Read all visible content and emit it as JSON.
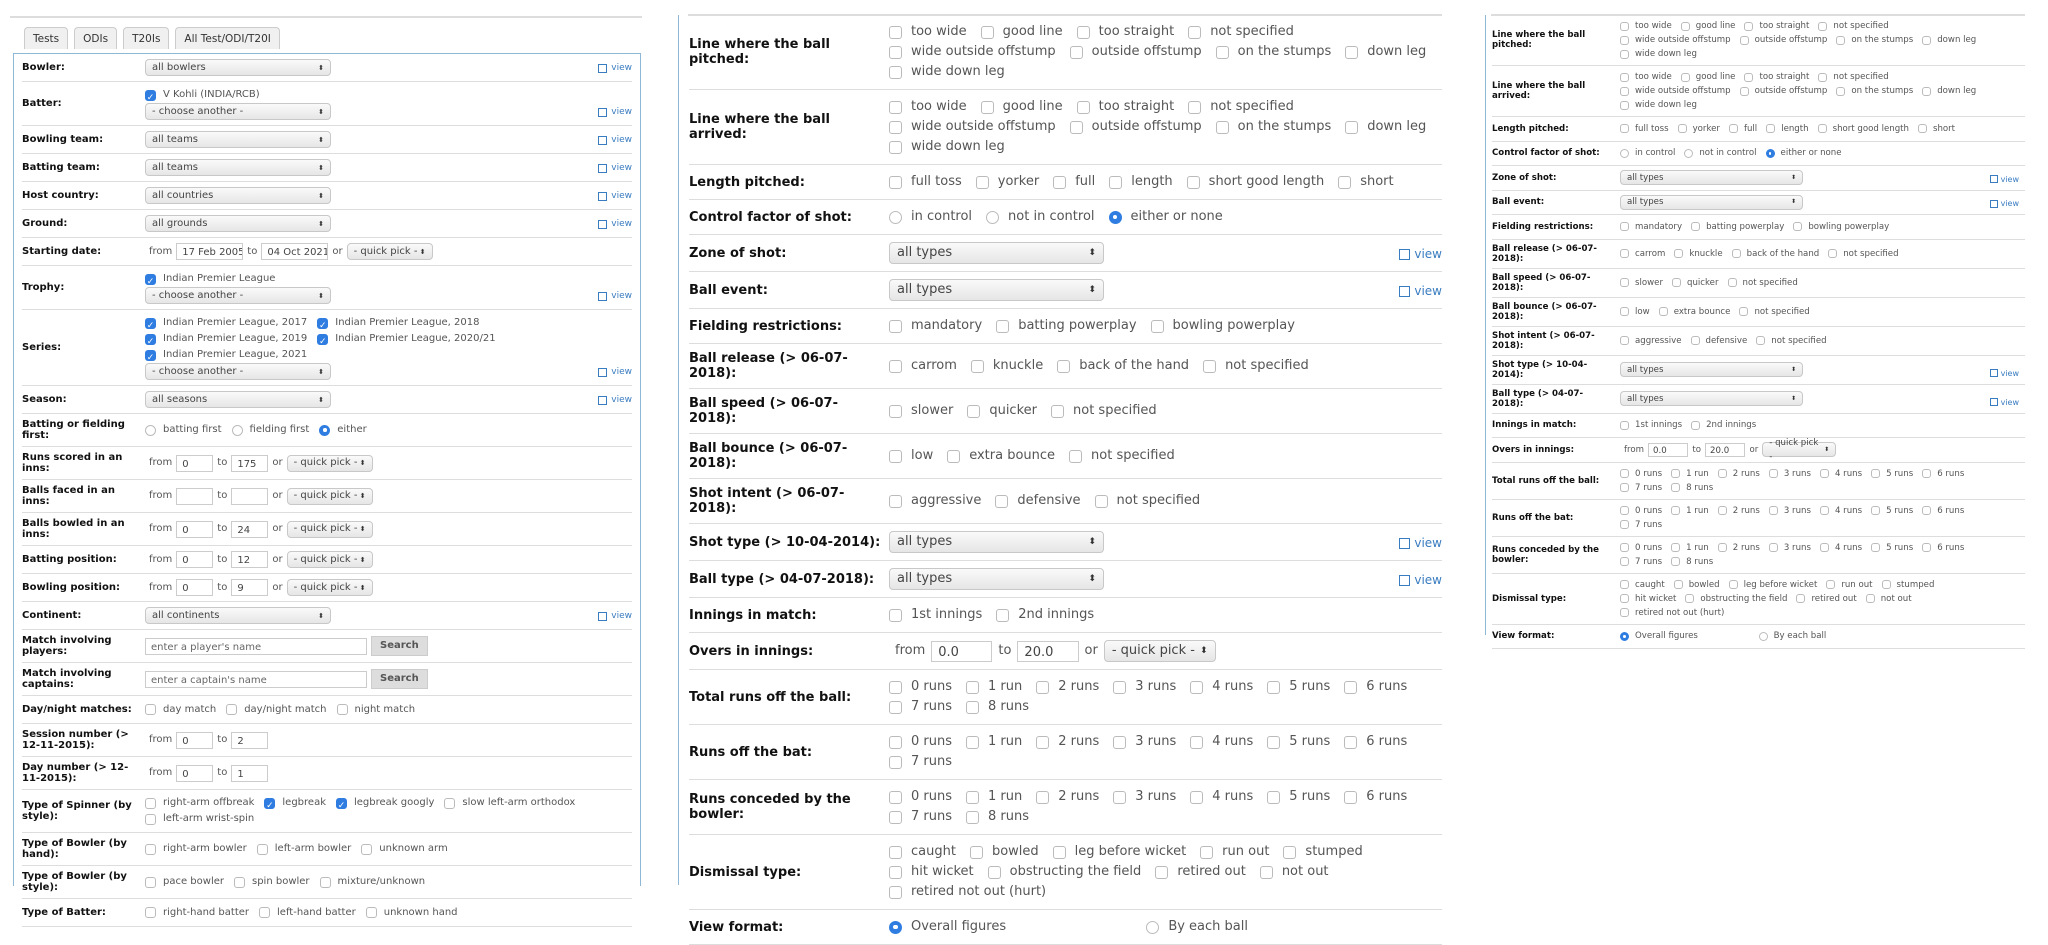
{
  "tabs": [
    "Tests",
    "ODIs",
    "T20Is",
    "All Test/ODI/T20I"
  ],
  "words": {
    "from": "from",
    "to": "to",
    "or": "or",
    "view": "view",
    "arrow": "⬍"
  },
  "colors": {
    "accent": "#2f7de1",
    "panel_border": "#8fb8d6",
    "link": "#3a7cc0"
  },
  "left_form": [
    {
      "label": "Bowler:",
      "select": "all bowlers",
      "view": true
    },
    {
      "label": "Batter:",
      "lines": [
        [
          {
            "label": "V Kohli (INDIA/RCB)",
            "checked": true
          }
        ]
      ],
      "select": "- choose another -",
      "view": true
    },
    {
      "label": "Bowling team:",
      "select": "all teams",
      "view": true
    },
    {
      "label": "Batting team:",
      "select": "all teams",
      "view": true
    },
    {
      "label": "Host country:",
      "select": "all countries",
      "view": true
    },
    {
      "label": "Ground:",
      "select": "all grounds",
      "view": true
    },
    {
      "label": "Starting date:",
      "range": {
        "from": "17 Feb 2005",
        "to": "04 Oct 2021",
        "quick": "- quick pick -"
      }
    },
    {
      "label": "Trophy:",
      "lines": [
        [
          {
            "label": "Indian Premier League",
            "checked": true
          }
        ]
      ],
      "select": "- choose another -",
      "view": true
    },
    {
      "label": "Series:",
      "lines": [
        [
          {
            "label": "Indian Premier League, 2017",
            "checked": true
          },
          {
            "label": "Indian Premier League, 2018",
            "checked": true
          }
        ],
        [
          {
            "label": "Indian Premier League, 2019",
            "checked": true
          },
          {
            "label": "Indian Premier League, 2020/21",
            "checked": true
          }
        ],
        [
          {
            "label": "Indian Premier League, 2021",
            "checked": true
          }
        ]
      ],
      "select": "- choose another -",
      "view": true
    },
    {
      "label": "Season:",
      "select": "all seasons",
      "view": true
    },
    {
      "label": "Batting or fielding first:",
      "radios": [
        {
          "label": "batting first",
          "selected": false
        },
        {
          "label": "fielding first",
          "selected": false
        },
        {
          "label": "either",
          "selected": true
        }
      ]
    },
    {
      "label": "Runs scored in an inns:",
      "range": {
        "from": "0",
        "to": "175",
        "quick": "- quick pick -"
      }
    },
    {
      "label": "Balls faced in an inns:",
      "range": {
        "from": "",
        "to": "",
        "quick": "- quick pick -"
      }
    },
    {
      "label": "Balls bowled in an inns:",
      "range": {
        "from": "0",
        "to": "24",
        "quick": "- quick pick -"
      }
    },
    {
      "label": "Batting position:",
      "range": {
        "from": "0",
        "to": "12",
        "quick": "- quick pick -"
      }
    },
    {
      "label": "Bowling position:",
      "range": {
        "from": "0",
        "to": "9",
        "quick": "- quick pick -"
      }
    },
    {
      "label": "Continent:",
      "select": "all continents",
      "view": true
    },
    {
      "label": "Match involving players:",
      "search": {
        "placeholder": "enter a player's name",
        "button": "Search"
      }
    },
    {
      "label": "Match involving captains:",
      "search": {
        "placeholder": "enter a captain's name",
        "button": "Search"
      }
    },
    {
      "label": "Day/night matches:",
      "lines": [
        [
          {
            "label": "day match",
            "checked": false
          },
          {
            "label": "day/night match",
            "checked": false
          },
          {
            "label": "night match",
            "checked": false
          }
        ]
      ]
    },
    {
      "label": "Session number (> 12-11-2015):",
      "range": {
        "from": "0",
        "to": "2"
      }
    },
    {
      "label": "Day number (> 12-11-2015):",
      "range": {
        "from": "0",
        "to": "1"
      }
    },
    {
      "label": "Type of Spinner (by style):",
      "lines": [
        [
          {
            "label": "right-arm offbreak",
            "checked": false
          },
          {
            "label": "legbreak",
            "checked": true
          },
          {
            "label": "legbreak googly",
            "checked": true
          },
          {
            "label": "slow left-arm orthodox",
            "checked": false
          }
        ],
        [
          {
            "label": "left-arm wrist-spin",
            "checked": false
          }
        ]
      ]
    },
    {
      "label": "Type of Bowler (by hand):",
      "lines": [
        [
          {
            "label": "right-arm bowler",
            "checked": false
          },
          {
            "label": "left-arm bowler",
            "checked": false
          },
          {
            "label": "unknown arm",
            "checked": false
          }
        ]
      ]
    },
    {
      "label": "Type of Bowler (by style):",
      "lines": [
        [
          {
            "label": "pace bowler",
            "checked": false
          },
          {
            "label": "spin bowler",
            "checked": false
          },
          {
            "label": "mixture/unknown",
            "checked": false
          }
        ]
      ]
    },
    {
      "label": "Type of Batter:",
      "lines": [
        [
          {
            "label": "right-hand batter",
            "checked": false
          },
          {
            "label": "left-hand batter",
            "checked": false
          },
          {
            "label": "unknown hand",
            "checked": false
          }
        ]
      ]
    }
  ],
  "ball_form": [
    {
      "label": "Line where the ball pitched:",
      "lines": [
        [
          {
            "label": "too wide",
            "checked": false
          },
          {
            "label": "good line",
            "checked": false
          },
          {
            "label": "too straight",
            "checked": false
          },
          {
            "label": "not specified",
            "checked": false
          }
        ],
        [
          {
            "label": "wide outside offstump",
            "checked": false
          },
          {
            "label": "outside offstump",
            "checked": false
          },
          {
            "label": "on the stumps",
            "checked": false
          },
          {
            "label": "down leg",
            "checked": false
          }
        ],
        [
          {
            "label": "wide down leg",
            "checked": false
          }
        ]
      ]
    },
    {
      "label": "Line where the ball arrived:",
      "lines": [
        [
          {
            "label": "too wide",
            "checked": false
          },
          {
            "label": "good line",
            "checked": false
          },
          {
            "label": "too straight",
            "checked": false
          },
          {
            "label": "not specified",
            "checked": false
          }
        ],
        [
          {
            "label": "wide outside offstump",
            "checked": false
          },
          {
            "label": "outside offstump",
            "checked": false
          },
          {
            "label": "on the stumps",
            "checked": false
          },
          {
            "label": "down leg",
            "checked": false
          }
        ],
        [
          {
            "label": "wide down leg",
            "checked": false
          }
        ]
      ]
    },
    {
      "label": "Length pitched:",
      "lines": [
        [
          {
            "label": "full toss",
            "checked": false
          },
          {
            "label": "yorker",
            "checked": false
          },
          {
            "label": "full",
            "checked": false
          },
          {
            "label": "length",
            "checked": false
          },
          {
            "label": "short good length",
            "checked": false
          },
          {
            "label": "short",
            "checked": false
          }
        ]
      ]
    },
    {
      "label": "Control factor of shot:",
      "radios": [
        {
          "label": "in control",
          "selected": false
        },
        {
          "label": "not in control",
          "selected": false
        },
        {
          "label": "either or none",
          "selected": true
        }
      ]
    },
    {
      "label": "Zone of shot:",
      "select": "all types",
      "view": true
    },
    {
      "label": "Ball event:",
      "select": "all types",
      "view": true
    },
    {
      "label": "Fielding restrictions:",
      "lines": [
        [
          {
            "label": "mandatory",
            "checked": false
          },
          {
            "label": "batting powerplay",
            "checked": false
          },
          {
            "label": "bowling powerplay",
            "checked": false
          }
        ]
      ]
    },
    {
      "label": "Ball release (> 06-07-2018):",
      "lines": [
        [
          {
            "label": "carrom",
            "checked": false
          },
          {
            "label": "knuckle",
            "checked": false
          },
          {
            "label": "back of the hand",
            "checked": false
          },
          {
            "label": "not specified",
            "checked": false
          }
        ]
      ]
    },
    {
      "label": "Ball speed (> 06-07-2018):",
      "lines": [
        [
          {
            "label": "slower",
            "checked": false
          },
          {
            "label": "quicker",
            "checked": false
          },
          {
            "label": "not specified",
            "checked": false
          }
        ]
      ]
    },
    {
      "label": "Ball bounce (> 06-07-2018):",
      "lines": [
        [
          {
            "label": "low",
            "checked": false
          },
          {
            "label": "extra bounce",
            "checked": false
          },
          {
            "label": "not specified",
            "checked": false
          }
        ]
      ]
    },
    {
      "label": "Shot intent (> 06-07-2018):",
      "lines": [
        [
          {
            "label": "aggressive",
            "checked": false
          },
          {
            "label": "defensive",
            "checked": false
          },
          {
            "label": "not specified",
            "checked": false
          }
        ]
      ]
    },
    {
      "label": "Shot type (> 10-04-2014):",
      "select": "all types",
      "view": true
    },
    {
      "label": "Ball type (> 04-07-2018):",
      "select": "all types",
      "view": true
    },
    {
      "label": "Innings in match:",
      "lines": [
        [
          {
            "label": "1st innings",
            "checked": false
          },
          {
            "label": "2nd innings",
            "checked": false
          }
        ]
      ]
    },
    {
      "label": "Overs in innings:",
      "range": {
        "from": "0.0",
        "to": "20.0",
        "quick": "- quick pick -"
      }
    },
    {
      "label": "Total runs off the ball:",
      "lines": [
        [
          {
            "label": "0 runs",
            "checked": false
          },
          {
            "label": "1 run",
            "checked": false
          },
          {
            "label": "2 runs",
            "checked": false
          },
          {
            "label": "3 runs",
            "checked": false
          },
          {
            "label": "4 runs",
            "checked": false
          },
          {
            "label": "5 runs",
            "checked": false
          },
          {
            "label": "6 runs",
            "checked": false
          }
        ],
        [
          {
            "label": "7 runs",
            "checked": false
          },
          {
            "label": "8 runs",
            "checked": false
          }
        ]
      ]
    },
    {
      "label": "Runs off the bat:",
      "lines": [
        [
          {
            "label": "0 runs",
            "checked": false
          },
          {
            "label": "1 run",
            "checked": false
          },
          {
            "label": "2 runs",
            "checked": false
          },
          {
            "label": "3 runs",
            "checked": false
          },
          {
            "label": "4 runs",
            "checked": false
          },
          {
            "label": "5 runs",
            "checked": false
          },
          {
            "label": "6 runs",
            "checked": false
          }
        ],
        [
          {
            "label": "7 runs",
            "checked": false
          }
        ]
      ]
    },
    {
      "label": "Runs conceded by the bowler:",
      "lines": [
        [
          {
            "label": "0 runs",
            "checked": false
          },
          {
            "label": "1 run",
            "checked": false
          },
          {
            "label": "2 runs",
            "checked": false
          },
          {
            "label": "3 runs",
            "checked": false
          },
          {
            "label": "4 runs",
            "checked": false
          },
          {
            "label": "5 runs",
            "checked": false
          },
          {
            "label": "6 runs",
            "checked": false
          }
        ],
        [
          {
            "label": "7 runs",
            "checked": false
          },
          {
            "label": "8 runs",
            "checked": false
          }
        ]
      ]
    },
    {
      "label": "Dismissal type:",
      "lines": [
        [
          {
            "label": "caught",
            "checked": false
          },
          {
            "label": "bowled",
            "checked": false
          },
          {
            "label": "leg before wicket",
            "checked": false
          },
          {
            "label": "run out",
            "checked": false
          },
          {
            "label": "stumped",
            "checked": false
          }
        ],
        [
          {
            "label": "hit wicket",
            "checked": false
          },
          {
            "label": "obstructing the field",
            "checked": false
          },
          {
            "label": "retired out",
            "checked": false
          },
          {
            "label": "not out",
            "checked": false
          }
        ],
        [
          {
            "label": "retired not out (hurt)",
            "checked": false
          }
        ]
      ]
    },
    {
      "label": "View format:",
      "radios": [
        {
          "label": "Overall figures",
          "selected": true
        },
        {
          "label": "By each ball",
          "selected": false
        }
      ]
    }
  ]
}
